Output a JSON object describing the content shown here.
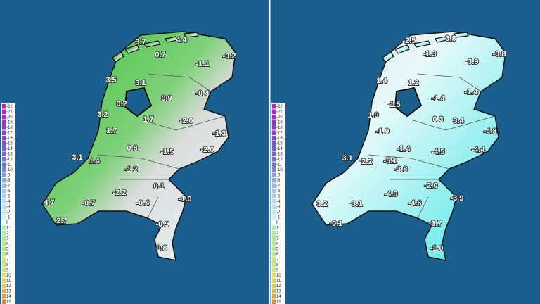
{
  "legend": {
    "labels": [
      "-22",
      "-21",
      "-20",
      "-19",
      "-18",
      "-17",
      "-16",
      "-15",
      "-14",
      "-13",
      "-12",
      "-11",
      "-10",
      "-9",
      "-8",
      "-7",
      "-6",
      "-5",
      "-4",
      "-3",
      "-2",
      "-1",
      "0",
      "1",
      "2",
      "3",
      "4",
      "5",
      "6",
      "7",
      "8",
      "9",
      "10",
      "11",
      "12",
      "13",
      "14",
      "15"
    ]
  },
  "maps": [
    {
      "labels": [
        "3.7",
        "4.4",
        "0.7",
        "-0.2",
        "-1.1",
        "3.5",
        "3.1",
        "-0.4",
        "0.2",
        "0.9",
        "3.2",
        "1.7",
        "-2.0",
        "1.7",
        "-1.3",
        "0.8",
        "-1.5",
        "-2.0",
        "3.1",
        "1.4",
        "-1.2",
        "0.1",
        "-2.2",
        "-1.0",
        "4.7",
        "-0.7",
        "-0.4",
        "2.7",
        "-0.9",
        "0.8"
      ]
    },
    {
      "labels": [
        "-2.5",
        "3.8",
        "-1.3",
        "-0.8",
        "-3.9",
        "1.4",
        "1.2",
        "-1.4",
        "-1.5",
        "-1.4",
        "1.9",
        "0.3",
        "3.4",
        "-1.9",
        "-4.8",
        "-1.4",
        "-4.5",
        "-4.4",
        "3.1",
        "-2.2",
        "-5.1",
        "-3.8",
        "-2.0",
        "-4.9",
        "-3.9",
        "3.2",
        "-3.1",
        "-4.6",
        "-0.1",
        "-3.7",
        "-1.0"
      ]
    }
  ]
}
